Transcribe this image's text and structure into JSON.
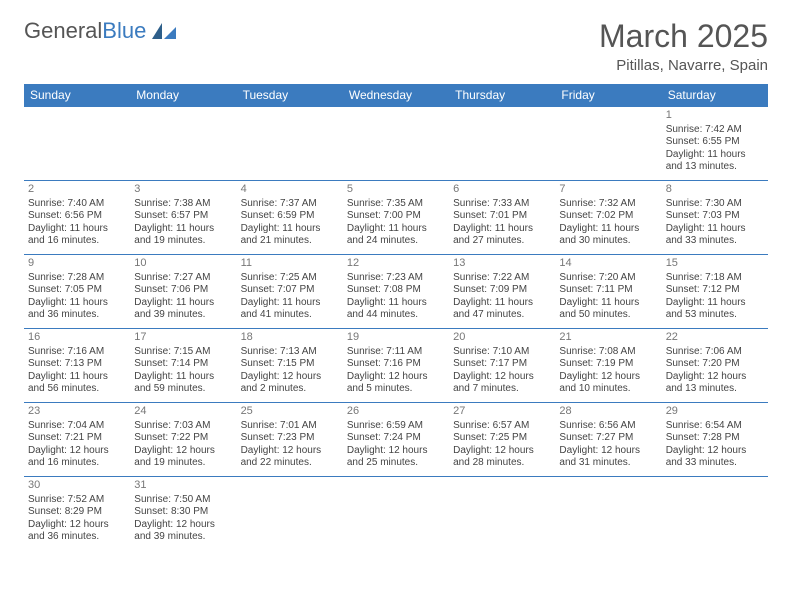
{
  "logo": {
    "text1": "General",
    "text2": "Blue"
  },
  "title": "March 2025",
  "location": "Pitillas, Navarre, Spain",
  "colors": {
    "header_bg": "#3b7bbf",
    "header_fg": "#ffffff",
    "border": "#3b7bbf",
    "text": "#444444",
    "title": "#555555"
  },
  "dayHeaders": [
    "Sunday",
    "Monday",
    "Tuesday",
    "Wednesday",
    "Thursday",
    "Friday",
    "Saturday"
  ],
  "weeks": [
    [
      null,
      null,
      null,
      null,
      null,
      null,
      {
        "n": "1",
        "sr": "Sunrise: 7:42 AM",
        "ss": "Sunset: 6:55 PM",
        "dl1": "Daylight: 11 hours",
        "dl2": "and 13 minutes."
      }
    ],
    [
      {
        "n": "2",
        "sr": "Sunrise: 7:40 AM",
        "ss": "Sunset: 6:56 PM",
        "dl1": "Daylight: 11 hours",
        "dl2": "and 16 minutes."
      },
      {
        "n": "3",
        "sr": "Sunrise: 7:38 AM",
        "ss": "Sunset: 6:57 PM",
        "dl1": "Daylight: 11 hours",
        "dl2": "and 19 minutes."
      },
      {
        "n": "4",
        "sr": "Sunrise: 7:37 AM",
        "ss": "Sunset: 6:59 PM",
        "dl1": "Daylight: 11 hours",
        "dl2": "and 21 minutes."
      },
      {
        "n": "5",
        "sr": "Sunrise: 7:35 AM",
        "ss": "Sunset: 7:00 PM",
        "dl1": "Daylight: 11 hours",
        "dl2": "and 24 minutes."
      },
      {
        "n": "6",
        "sr": "Sunrise: 7:33 AM",
        "ss": "Sunset: 7:01 PM",
        "dl1": "Daylight: 11 hours",
        "dl2": "and 27 minutes."
      },
      {
        "n": "7",
        "sr": "Sunrise: 7:32 AM",
        "ss": "Sunset: 7:02 PM",
        "dl1": "Daylight: 11 hours",
        "dl2": "and 30 minutes."
      },
      {
        "n": "8",
        "sr": "Sunrise: 7:30 AM",
        "ss": "Sunset: 7:03 PM",
        "dl1": "Daylight: 11 hours",
        "dl2": "and 33 minutes."
      }
    ],
    [
      {
        "n": "9",
        "sr": "Sunrise: 7:28 AM",
        "ss": "Sunset: 7:05 PM",
        "dl1": "Daylight: 11 hours",
        "dl2": "and 36 minutes."
      },
      {
        "n": "10",
        "sr": "Sunrise: 7:27 AM",
        "ss": "Sunset: 7:06 PM",
        "dl1": "Daylight: 11 hours",
        "dl2": "and 39 minutes."
      },
      {
        "n": "11",
        "sr": "Sunrise: 7:25 AM",
        "ss": "Sunset: 7:07 PM",
        "dl1": "Daylight: 11 hours",
        "dl2": "and 41 minutes."
      },
      {
        "n": "12",
        "sr": "Sunrise: 7:23 AM",
        "ss": "Sunset: 7:08 PM",
        "dl1": "Daylight: 11 hours",
        "dl2": "and 44 minutes."
      },
      {
        "n": "13",
        "sr": "Sunrise: 7:22 AM",
        "ss": "Sunset: 7:09 PM",
        "dl1": "Daylight: 11 hours",
        "dl2": "and 47 minutes."
      },
      {
        "n": "14",
        "sr": "Sunrise: 7:20 AM",
        "ss": "Sunset: 7:11 PM",
        "dl1": "Daylight: 11 hours",
        "dl2": "and 50 minutes."
      },
      {
        "n": "15",
        "sr": "Sunrise: 7:18 AM",
        "ss": "Sunset: 7:12 PM",
        "dl1": "Daylight: 11 hours",
        "dl2": "and 53 minutes."
      }
    ],
    [
      {
        "n": "16",
        "sr": "Sunrise: 7:16 AM",
        "ss": "Sunset: 7:13 PM",
        "dl1": "Daylight: 11 hours",
        "dl2": "and 56 minutes."
      },
      {
        "n": "17",
        "sr": "Sunrise: 7:15 AM",
        "ss": "Sunset: 7:14 PM",
        "dl1": "Daylight: 11 hours",
        "dl2": "and 59 minutes."
      },
      {
        "n": "18",
        "sr": "Sunrise: 7:13 AM",
        "ss": "Sunset: 7:15 PM",
        "dl1": "Daylight: 12 hours",
        "dl2": "and 2 minutes."
      },
      {
        "n": "19",
        "sr": "Sunrise: 7:11 AM",
        "ss": "Sunset: 7:16 PM",
        "dl1": "Daylight: 12 hours",
        "dl2": "and 5 minutes."
      },
      {
        "n": "20",
        "sr": "Sunrise: 7:10 AM",
        "ss": "Sunset: 7:17 PM",
        "dl1": "Daylight: 12 hours",
        "dl2": "and 7 minutes."
      },
      {
        "n": "21",
        "sr": "Sunrise: 7:08 AM",
        "ss": "Sunset: 7:19 PM",
        "dl1": "Daylight: 12 hours",
        "dl2": "and 10 minutes."
      },
      {
        "n": "22",
        "sr": "Sunrise: 7:06 AM",
        "ss": "Sunset: 7:20 PM",
        "dl1": "Daylight: 12 hours",
        "dl2": "and 13 minutes."
      }
    ],
    [
      {
        "n": "23",
        "sr": "Sunrise: 7:04 AM",
        "ss": "Sunset: 7:21 PM",
        "dl1": "Daylight: 12 hours",
        "dl2": "and 16 minutes."
      },
      {
        "n": "24",
        "sr": "Sunrise: 7:03 AM",
        "ss": "Sunset: 7:22 PM",
        "dl1": "Daylight: 12 hours",
        "dl2": "and 19 minutes."
      },
      {
        "n": "25",
        "sr": "Sunrise: 7:01 AM",
        "ss": "Sunset: 7:23 PM",
        "dl1": "Daylight: 12 hours",
        "dl2": "and 22 minutes."
      },
      {
        "n": "26",
        "sr": "Sunrise: 6:59 AM",
        "ss": "Sunset: 7:24 PM",
        "dl1": "Daylight: 12 hours",
        "dl2": "and 25 minutes."
      },
      {
        "n": "27",
        "sr": "Sunrise: 6:57 AM",
        "ss": "Sunset: 7:25 PM",
        "dl1": "Daylight: 12 hours",
        "dl2": "and 28 minutes."
      },
      {
        "n": "28",
        "sr": "Sunrise: 6:56 AM",
        "ss": "Sunset: 7:27 PM",
        "dl1": "Daylight: 12 hours",
        "dl2": "and 31 minutes."
      },
      {
        "n": "29",
        "sr": "Sunrise: 6:54 AM",
        "ss": "Sunset: 7:28 PM",
        "dl1": "Daylight: 12 hours",
        "dl2": "and 33 minutes."
      }
    ],
    [
      {
        "n": "30",
        "sr": "Sunrise: 7:52 AM",
        "ss": "Sunset: 8:29 PM",
        "dl1": "Daylight: 12 hours",
        "dl2": "and 36 minutes."
      },
      {
        "n": "31",
        "sr": "Sunrise: 7:50 AM",
        "ss": "Sunset: 8:30 PM",
        "dl1": "Daylight: 12 hours",
        "dl2": "and 39 minutes."
      },
      null,
      null,
      null,
      null,
      null
    ]
  ]
}
